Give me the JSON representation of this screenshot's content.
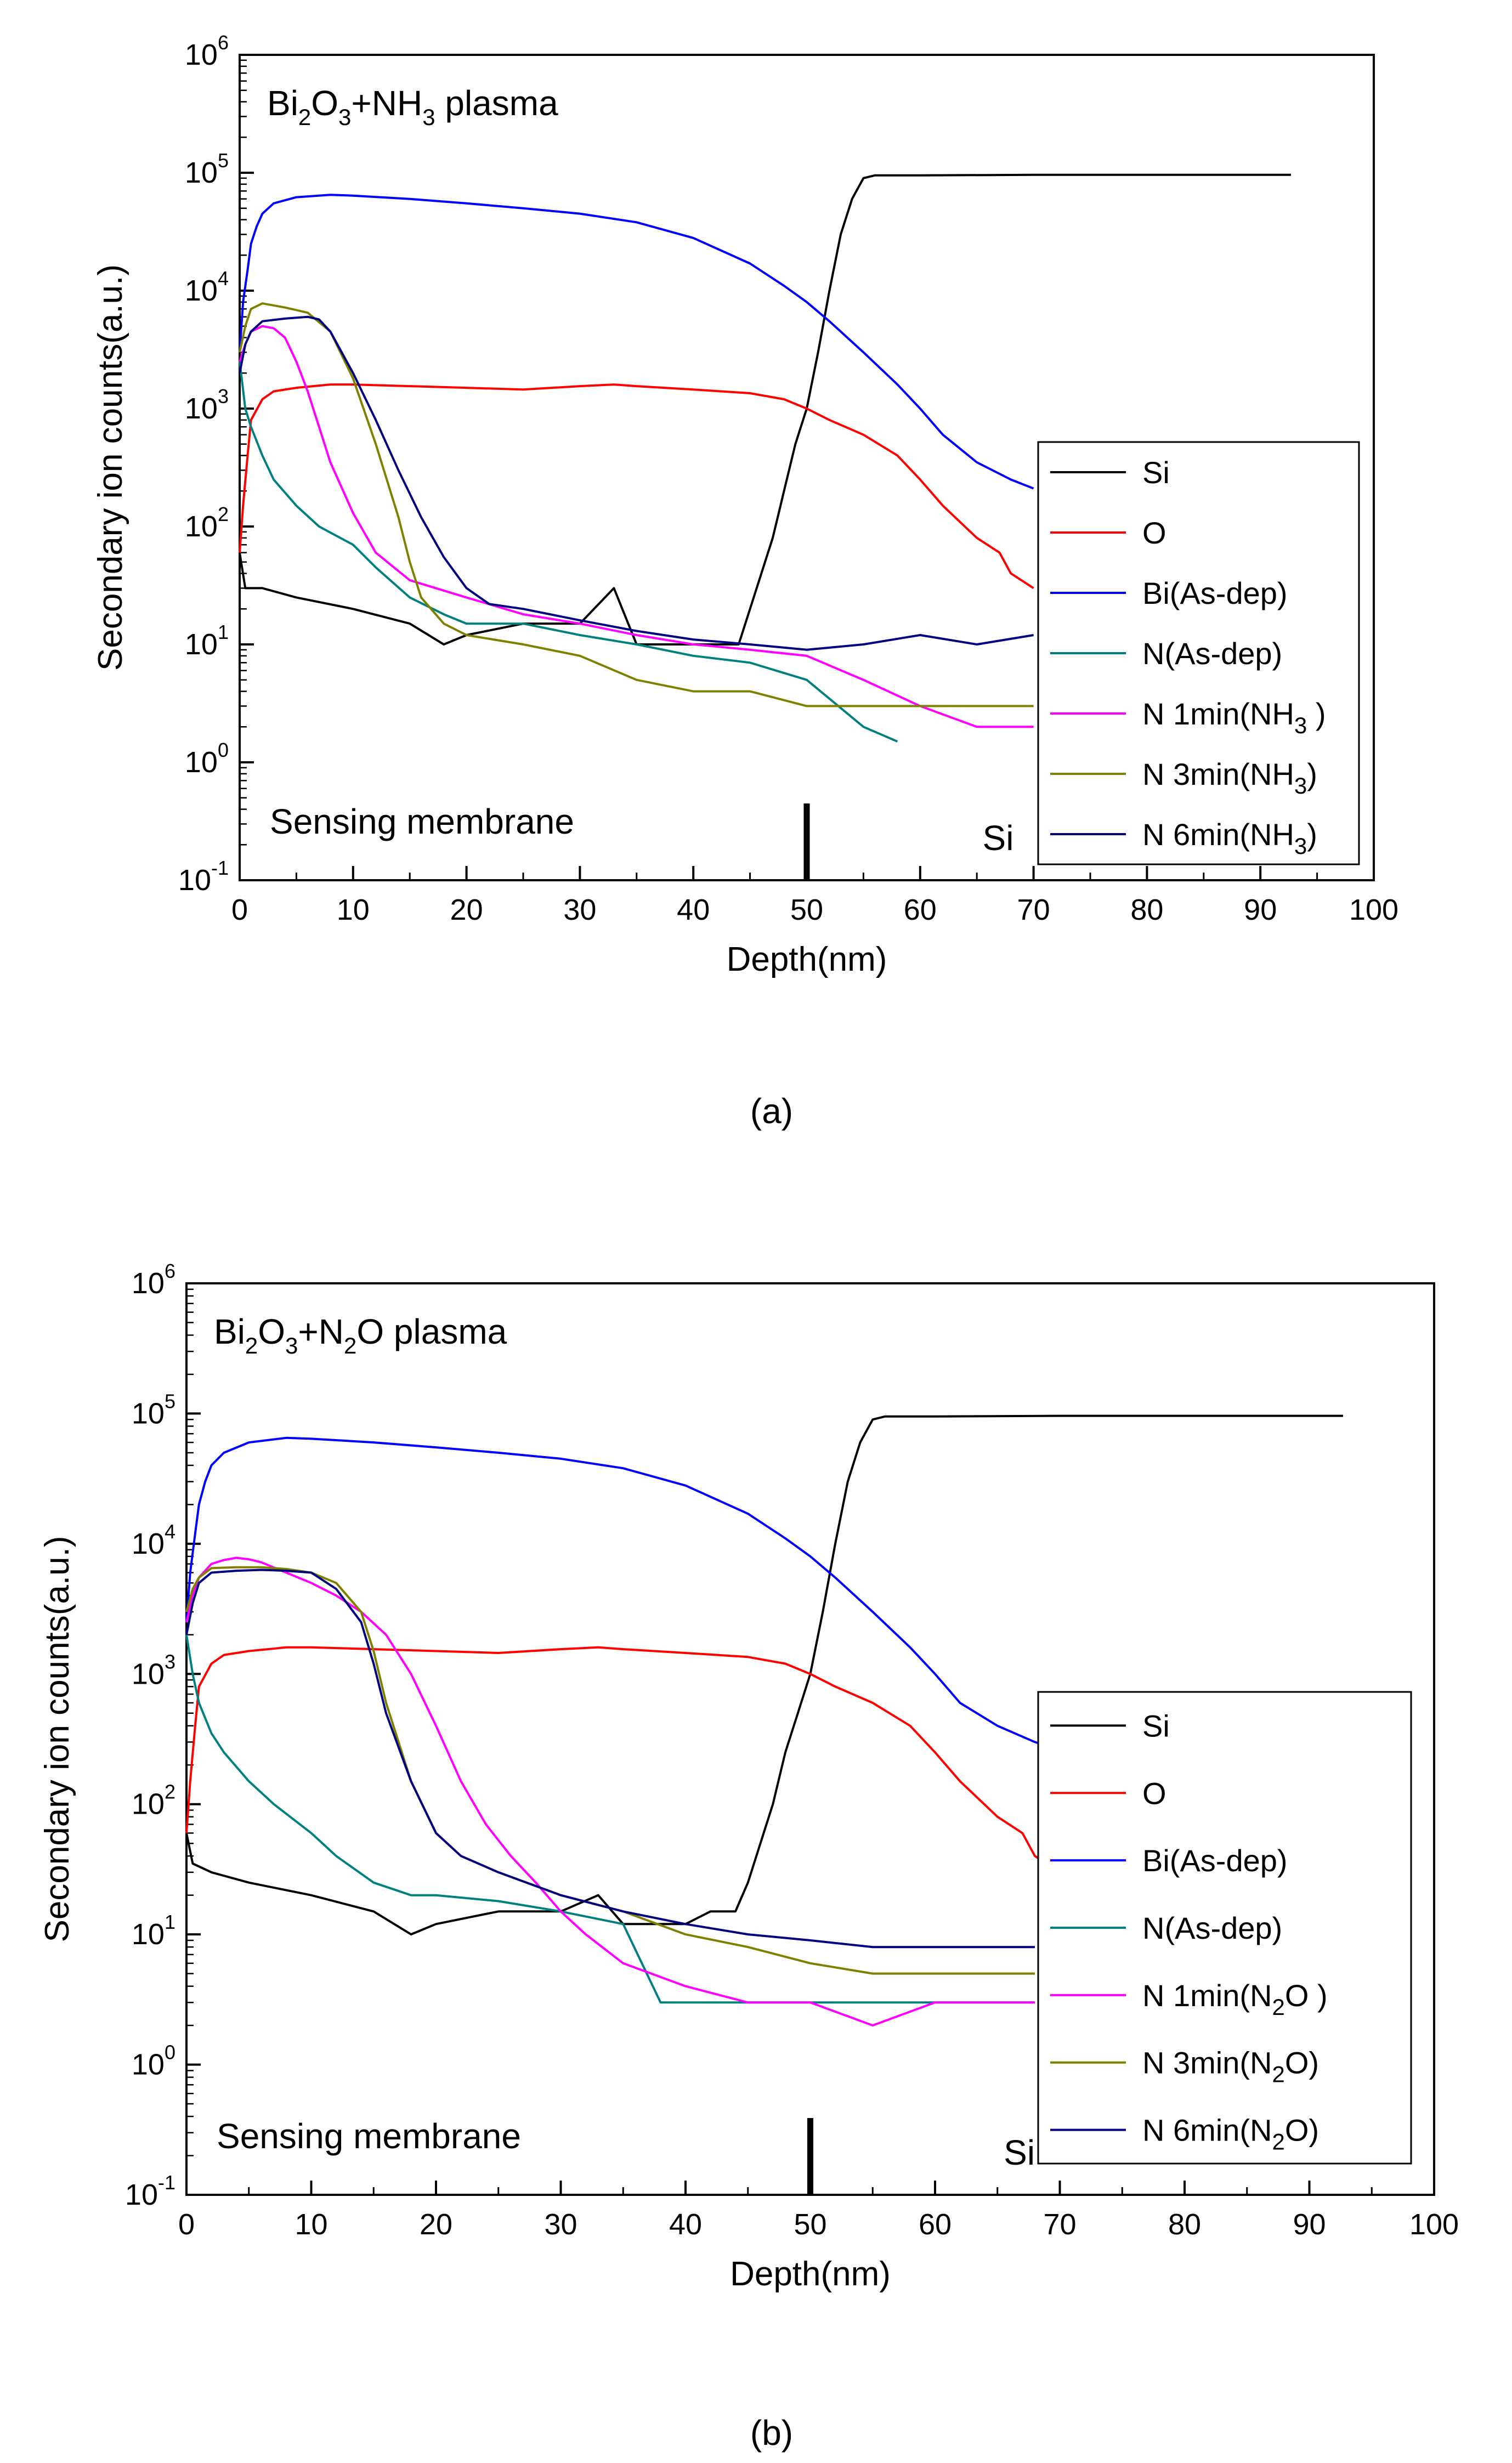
{
  "colors": {
    "Si": "#000000",
    "O": "#ff0000",
    "Bi": "#0000ff",
    "N_asdep": "#008080",
    "N_1min": "#ff00ff",
    "N_3min": "#808000",
    "N_6min": "#000080"
  },
  "captions": [
    "(a)",
    "(b)"
  ],
  "chart_data": [
    {
      "type": "line",
      "panel": "a",
      "annotation": {
        "base": "Bi",
        "sub1": "2",
        "mid": "O",
        "sub2": "3",
        "rest": "+NH",
        "sub3": "3",
        "tail": " plasma"
      },
      "region_labels": {
        "left": "Sensing membrane",
        "right": "Si"
      },
      "interface_marker_x": 50,
      "xlabel": "Depth(nm)",
      "ylabel": "Secondary ion counts(a.u.)",
      "xlim": [
        0,
        100
      ],
      "ylim": [
        0.1,
        1000000
      ],
      "yscale": "log",
      "x_ticks": [
        "0",
        "10",
        "20",
        "30",
        "40",
        "50",
        "60",
        "70",
        "80",
        "90",
        "100"
      ],
      "y_tick_exponents": [
        "-1",
        "0",
        "1",
        "2",
        "3",
        "4",
        "5",
        "6"
      ],
      "legend_position": "right",
      "legend_entries": [
        {
          "text": "Si",
          "sub": "",
          "after": ""
        },
        {
          "text": "O",
          "sub": "",
          "after": ""
        },
        {
          "text": "Bi(As-dep)",
          "sub": "",
          "after": ""
        },
        {
          "text": "N(As-dep)",
          "sub": "",
          "after": ""
        },
        {
          "text": "N 1min(NH",
          "sub": "3",
          "after": " )"
        },
        {
          "text": "N 3min(NH",
          "sub": "3",
          "after": ")"
        },
        {
          "text": "N 6min(NH",
          "sub": "3",
          "after": ")"
        }
      ],
      "series": [
        {
          "key": "Si",
          "x": [
            0,
            0.5,
            2,
            5,
            10,
            15,
            18,
            20,
            25,
            30,
            33,
            35,
            38,
            40,
            42,
            44,
            45,
            46,
            47,
            48,
            49,
            50,
            51,
            52,
            53,
            54,
            55,
            56,
            60,
            70,
            80,
            90,
            92.7
          ],
          "y": [
            60,
            30,
            30,
            25,
            20,
            15,
            10,
            12,
            15,
            15,
            30,
            10,
            10,
            10,
            10,
            10,
            20,
            40,
            80,
            200,
            500,
            1000,
            3000,
            10000,
            30000,
            60000,
            90000,
            95000,
            95000,
            96000,
            96000,
            96000,
            96000
          ]
        },
        {
          "key": "O",
          "x": [
            0,
            0.3,
            0.7,
            1,
            2,
            3,
            5,
            8,
            10,
            15,
            20,
            25,
            30,
            33,
            35,
            40,
            45,
            48,
            50,
            52,
            55,
            58,
            60,
            62,
            65,
            67,
            68,
            70
          ],
          "y": [
            60,
            150,
            400,
            800,
            1200,
            1400,
            1500,
            1600,
            1600,
            1550,
            1500,
            1450,
            1550,
            1600,
            1550,
            1450,
            1350,
            1200,
            1000,
            800,
            600,
            400,
            250,
            150,
            80,
            60,
            40,
            30
          ]
        },
        {
          "key": "Bi",
          "x": [
            0,
            0.3,
            0.7,
            1,
            1.5,
            2,
            3,
            5,
            8,
            10,
            15,
            20,
            25,
            30,
            35,
            40,
            45,
            48,
            50,
            52,
            55,
            58,
            60,
            62,
            65,
            68,
            70
          ],
          "y": [
            3000,
            8000,
            15000,
            25000,
            35000,
            45000,
            55000,
            62000,
            65000,
            64000,
            60000,
            55000,
            50000,
            45000,
            38000,
            28000,
            17000,
            11000,
            8000,
            5500,
            3000,
            1600,
            1000,
            600,
            350,
            250,
            210
          ]
        },
        {
          "key": "N_asdep",
          "x": [
            0,
            0.5,
            1,
            2,
            3,
            5,
            7,
            10,
            12,
            15,
            18,
            20,
            25,
            30,
            35,
            40,
            45,
            50,
            55,
            58
          ],
          "y": [
            2500,
            1000,
            700,
            400,
            250,
            150,
            100,
            70,
            45,
            25,
            18,
            15,
            15,
            12,
            10,
            8,
            7,
            5,
            2,
            1.5
          ]
        },
        {
          "key": "N_1min",
          "x": [
            0,
            0.5,
            1,
            2,
            3,
            4,
            5,
            6,
            7,
            8,
            10,
            12,
            15,
            20,
            25,
            30,
            35,
            40,
            45,
            50,
            55,
            60,
            65,
            68,
            70
          ],
          "y": [
            2500,
            3500,
            4500,
            5000,
            4800,
            4000,
            2500,
            1400,
            700,
            350,
            130,
            60,
            35,
            25,
            18,
            15,
            12,
            10,
            9,
            8,
            5,
            3,
            2,
            2,
            2
          ]
        },
        {
          "key": "N_3min",
          "x": [
            0,
            0.5,
            1,
            2,
            4,
            6,
            8,
            10,
            12,
            14,
            15,
            16,
            18,
            20,
            25,
            30,
            35,
            40,
            45,
            50,
            55,
            60,
            65,
            70
          ],
          "y": [
            3000,
            5000,
            7000,
            7800,
            7200,
            6500,
            4500,
            1800,
            500,
            120,
            50,
            25,
            15,
            12,
            10,
            8,
            5,
            4,
            4,
            3,
            3,
            3,
            3,
            3
          ]
        },
        {
          "key": "N_6min",
          "x": [
            0,
            0.5,
            1,
            2,
            4,
            6,
            7,
            8,
            10,
            12,
            14,
            16,
            18,
            20,
            22,
            25,
            30,
            35,
            40,
            45,
            50,
            55,
            60,
            65,
            70
          ],
          "y": [
            2000,
            3500,
            4500,
            5500,
            5800,
            6000,
            5700,
            4500,
            2000,
            800,
            300,
            120,
            55,
            30,
            22,
            20,
            16,
            13,
            11,
            10,
            9,
            10,
            12,
            10,
            12
          ]
        }
      ]
    },
    {
      "type": "line",
      "panel": "b",
      "annotation": {
        "base": "Bi",
        "sub1": "2",
        "mid": "O",
        "sub2": "3",
        "rest": "+N",
        "sub3": "2",
        "tail": "O plasma"
      },
      "region_labels": {
        "left": "Sensing membrane",
        "right": "Si"
      },
      "interface_marker_x": 50,
      "xlabel": "Depth(nm)",
      "ylabel": "Secondary ion counts(a.u.)",
      "xlim": [
        0,
        100
      ],
      "ylim": [
        0.1,
        1000000
      ],
      "yscale": "log",
      "x_ticks": [
        "0",
        "10",
        "20",
        "30",
        "40",
        "50",
        "60",
        "70",
        "80",
        "90",
        "100"
      ],
      "y_tick_exponents": [
        "-1",
        "0",
        "1",
        "2",
        "3",
        "4",
        "5",
        "6"
      ],
      "legend_position": "right",
      "legend_entries": [
        {
          "text": "Si",
          "sub": "",
          "after": ""
        },
        {
          "text": "O",
          "sub": "",
          "after": ""
        },
        {
          "text": "Bi(As-dep)",
          "sub": "",
          "after": ""
        },
        {
          "text": "N(As-dep)",
          "sub": "",
          "after": ""
        },
        {
          "text": "N 1min(N",
          "sub": "2",
          "after": "O )"
        },
        {
          "text": "N 3min(N",
          "sub": "2",
          "after": "O)"
        },
        {
          "text": "N 6min(N",
          "sub": "2",
          "after": "O)"
        }
      ],
      "series": [
        {
          "key": "Si",
          "x": [
            0,
            0.5,
            2,
            5,
            10,
            15,
            18,
            20,
            25,
            30,
            33,
            35,
            38,
            40,
            42,
            44,
            45,
            46,
            47,
            48,
            49,
            50,
            51,
            52,
            53,
            54,
            55,
            56,
            60,
            70,
            80,
            90,
            92.7
          ],
          "y": [
            60,
            35,
            30,
            25,
            20,
            15,
            10,
            12,
            15,
            15,
            20,
            12,
            12,
            12,
            15,
            15,
            25,
            50,
            100,
            250,
            500,
            1000,
            3000,
            10000,
            30000,
            60000,
            90000,
            95000,
            95000,
            96000,
            96000,
            96000,
            96000
          ]
        },
        {
          "key": "O",
          "x": [
            0,
            0.3,
            0.7,
            1,
            2,
            3,
            5,
            8,
            10,
            15,
            20,
            25,
            30,
            33,
            35,
            40,
            45,
            48,
            50,
            52,
            55,
            58,
            60,
            62,
            65,
            67,
            68,
            70
          ],
          "y": [
            60,
            150,
            400,
            800,
            1200,
            1400,
            1500,
            1600,
            1600,
            1550,
            1500,
            1450,
            1550,
            1600,
            1550,
            1450,
            1350,
            1200,
            1000,
            800,
            600,
            400,
            250,
            150,
            80,
            60,
            40,
            30
          ]
        },
        {
          "key": "Bi",
          "x": [
            0,
            0.3,
            0.7,
            1,
            1.5,
            2,
            3,
            5,
            8,
            10,
            15,
            20,
            25,
            30,
            35,
            40,
            45,
            48,
            50,
            52,
            55,
            58,
            60,
            62,
            65,
            68,
            70
          ],
          "y": [
            2500,
            6000,
            12000,
            20000,
            30000,
            40000,
            50000,
            60000,
            65000,
            64000,
            60000,
            55000,
            50000,
            45000,
            38000,
            28000,
            17000,
            11000,
            8000,
            5500,
            3000,
            1600,
            1000,
            600,
            400,
            300,
            260
          ]
        },
        {
          "key": "N_asdep",
          "x": [
            0,
            0.5,
            1,
            2,
            3,
            5,
            7,
            10,
            12,
            15,
            18,
            20,
            25,
            30,
            35,
            38,
            40,
            45,
            50,
            55,
            60,
            65,
            68
          ],
          "y": [
            2000,
            1000,
            600,
            350,
            250,
            150,
            100,
            60,
            40,
            25,
            20,
            20,
            18,
            15,
            12,
            3,
            3,
            3,
            3,
            3,
            3,
            3,
            3
          ]
        },
        {
          "key": "N_1min",
          "x": [
            0,
            0.5,
            1,
            2,
            3,
            4,
            5,
            6,
            8,
            10,
            12,
            14,
            16,
            18,
            20,
            22,
            24,
            26,
            28,
            30,
            32,
            35,
            40,
            45,
            50,
            55,
            60,
            65,
            68
          ],
          "y": [
            2500,
            4000,
            5500,
            7000,
            7500,
            7800,
            7600,
            7200,
            6000,
            5000,
            4000,
            3000,
            2000,
            1000,
            400,
            150,
            70,
            40,
            25,
            15,
            10,
            6,
            4,
            3,
            3,
            2,
            3,
            3,
            3
          ]
        },
        {
          "key": "N_3min",
          "x": [
            0,
            0.5,
            1,
            2,
            4,
            6,
            8,
            10,
            12,
            14,
            15,
            16,
            18,
            20,
            22,
            25,
            30,
            35,
            40,
            45,
            50,
            55,
            60,
            65,
            68
          ],
          "y": [
            3000,
            4500,
            5500,
            6500,
            6600,
            6600,
            6400,
            6000,
            5000,
            3000,
            1500,
            600,
            150,
            60,
            40,
            30,
            20,
            15,
            10,
            8,
            6,
            5,
            5,
            5,
            5
          ]
        },
        {
          "key": "N_6min",
          "x": [
            0,
            0.5,
            1,
            2,
            4,
            6,
            8,
            10,
            12,
            14,
            15,
            16,
            18,
            20,
            22,
            25,
            30,
            35,
            40,
            45,
            50,
            55,
            60,
            65,
            68
          ],
          "y": [
            2000,
            3500,
            5000,
            6000,
            6200,
            6300,
            6200,
            6000,
            4500,
            2500,
            1200,
            500,
            150,
            60,
            40,
            30,
            20,
            15,
            12,
            10,
            9,
            8,
            8,
            8,
            8
          ]
        }
      ]
    }
  ]
}
